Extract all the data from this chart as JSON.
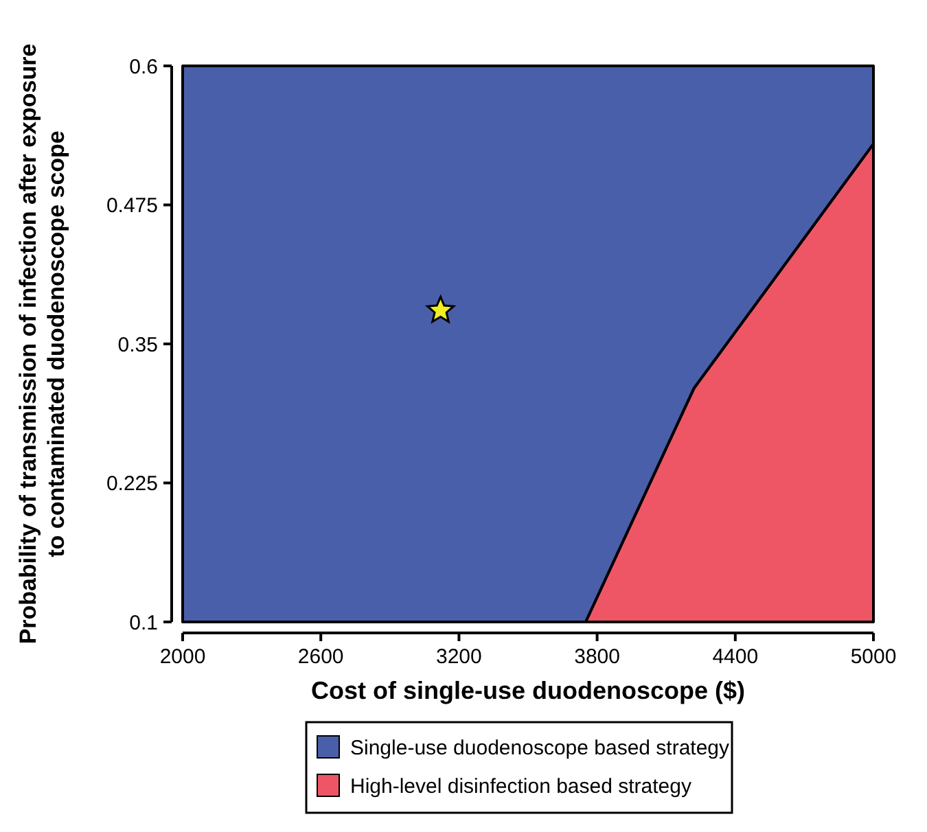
{
  "chart_data": {
    "type": "area",
    "xlabel": "Cost of single-use duodenoscope ($)",
    "ylabel": "Probability of transmission of infection after exposure to contaminated duodenoscope scope",
    "xlim": [
      2000,
      5000
    ],
    "xticks": [
      2000,
      2600,
      3200,
      3800,
      4400,
      5000
    ],
    "ylim": [
      0.1,
      0.6
    ],
    "yticks": [
      0.1,
      0.225,
      0.35,
      0.475,
      0.6
    ],
    "series": [
      {
        "name": "High-level disinfection based strategy",
        "color": "#ee5666",
        "x": [
          2000,
          3750,
          4220,
          5000
        ],
        "values": [
          0.1,
          0.1,
          0.31,
          0.53
        ]
      },
      {
        "name": "Single-use duodenoscope based strategy",
        "color": "#4a5faa",
        "x": [
          2000,
          3750,
          4220,
          5000
        ],
        "values": [
          0.6,
          0.6,
          0.6,
          0.6
        ]
      },
      {
        "type": "scatter",
        "color": "#f2ee22",
        "marker": "star",
        "x": [
          3120
        ],
        "values": [
          0.38
        ]
      }
    ],
    "legend": "bottom"
  }
}
